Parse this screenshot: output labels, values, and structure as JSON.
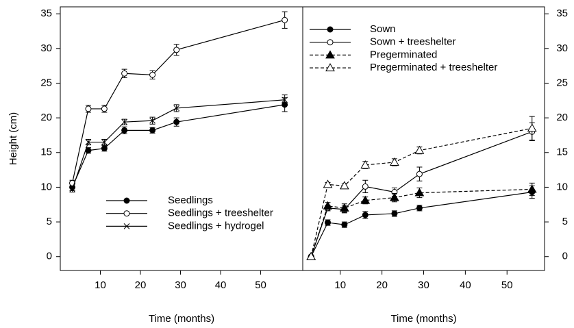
{
  "chart_data": [
    {
      "type": "line",
      "x_label": "Time (months)",
      "y_label": "Height (cm)",
      "yaxis_side": "left",
      "legend": "lower center",
      "xlim": [
        0,
        60.5
      ],
      "ylim": [
        -2,
        36
      ],
      "xticks": [
        10,
        20,
        30,
        40,
        50
      ],
      "yticks": [
        0,
        5,
        10,
        15,
        20,
        25,
        30,
        35
      ],
      "x": [
        3,
        7,
        11,
        16,
        23,
        29,
        56
      ],
      "series": [
        {
          "name": "Seedlings",
          "color": "#000000",
          "marker": "filled-circle",
          "dash": "solid",
          "values": [
            10,
            15.3,
            15.6,
            18.2,
            18.2,
            19.4,
            21.9
          ],
          "errors": [
            0.5,
            0.4,
            0.4,
            0.5,
            0.4,
            0.6,
            1.0
          ]
        },
        {
          "name": "Seedlings + treeshelter",
          "color": "#000000",
          "marker": "open-circle",
          "dash": "solid",
          "values": [
            10.6,
            21.3,
            21.3,
            26.4,
            26.2,
            29.8,
            34.1
          ],
          "errors": [
            0.4,
            0.5,
            0.5,
            0.6,
            0.6,
            0.8,
            1.2
          ]
        },
        {
          "name": "Seedlings + hydrogel",
          "color": "#000000",
          "marker": "cross",
          "dash": "solid",
          "values": [
            9.7,
            16.5,
            16.5,
            19.4,
            19.6,
            21.4,
            22.6
          ],
          "errors": [
            0.4,
            0.4,
            0.4,
            0.4,
            0.5,
            0.5,
            0.7
          ]
        }
      ]
    },
    {
      "type": "line",
      "x_label": "Time (months)",
      "yaxis_side": "right",
      "legend": "upper left",
      "xlim": [
        1,
        59
      ],
      "ylim": [
        -2,
        36
      ],
      "xticks": [
        10,
        20,
        30,
        40,
        50
      ],
      "yticks": [
        0,
        5,
        10,
        15,
        20,
        25,
        30,
        35
      ],
      "x": [
        3,
        7,
        11,
        16,
        23,
        29,
        56
      ],
      "series": [
        {
          "name": "Sown",
          "color": "#000000",
          "marker": "filled-circle",
          "dash": "solid",
          "values": [
            0,
            4.9,
            4.6,
            6.0,
            6.2,
            7.0,
            9.3
          ],
          "errors": [
            0,
            0.4,
            0.4,
            0.5,
            0.4,
            0.4,
            0.9
          ]
        },
        {
          "name": "Sown + treeshelter",
          "color": "#000000",
          "marker": "open-circle",
          "dash": "solid",
          "values": [
            0,
            7.0,
            6.8,
            10.1,
            9.3,
            11.9,
            18.0
          ],
          "errors": [
            0,
            0.4,
            0.5,
            0.9,
            0.6,
            1.0,
            1.3
          ]
        },
        {
          "name": "Pregerminated",
          "color": "#000000",
          "marker": "filled-triangle",
          "dash": "dashed",
          "values": [
            0,
            7.3,
            7.0,
            8.1,
            8.5,
            9.2,
            9.7
          ],
          "errors": [
            0,
            0.5,
            0.6,
            0.5,
            0.6,
            0.7,
            0.9
          ]
        },
        {
          "name": "Pregerminated + treeshelter",
          "color": "#000000",
          "marker": "open-triangle",
          "dash": "dashed",
          "values": [
            0,
            10.4,
            10.2,
            13.2,
            13.6,
            15.3,
            18.5
          ],
          "errors": [
            0,
            0.3,
            0.3,
            0.5,
            0.5,
            0.5,
            1.7
          ]
        }
      ]
    }
  ]
}
